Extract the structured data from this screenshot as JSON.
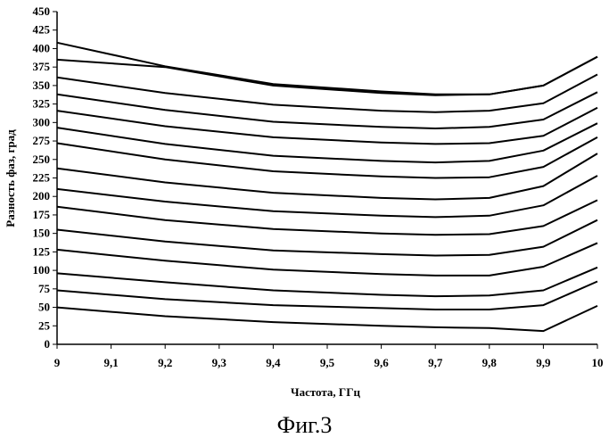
{
  "chart_data": {
    "type": "line",
    "title": "",
    "xlabel": "Частота, ГГц",
    "ylabel": "Разность фаз, град",
    "xlim": [
      9,
      10
    ],
    "ylim": [
      0,
      450
    ],
    "grid": "none",
    "legend": "none",
    "x": [
      9,
      9.2,
      9.4,
      9.6,
      9.7,
      9.8,
      9.9,
      10
    ],
    "x_tick_labels": [
      "9",
      "9,1",
      "9,2",
      "9,3",
      "9,4",
      "9,5",
      "9,6",
      "9,7",
      "9,8",
      "9,9",
      "10"
    ],
    "x_tick_values": [
      9,
      9.1,
      9.2,
      9.3,
      9.4,
      9.5,
      9.6,
      9.7,
      9.8,
      9.9,
      10
    ],
    "y_tick_labels": [
      "0",
      "25",
      "50",
      "75",
      "100",
      "125",
      "150",
      "175",
      "200",
      "225",
      "250",
      "275",
      "300",
      "325",
      "350",
      "375",
      "400",
      "425",
      "450"
    ],
    "y_tick_values": [
      0,
      25,
      50,
      75,
      100,
      125,
      150,
      175,
      200,
      225,
      250,
      275,
      300,
      325,
      350,
      375,
      400,
      425,
      450
    ],
    "series": [
      {
        "values": [
          50,
          38,
          30,
          25,
          23,
          22,
          18,
          52
        ]
      },
      {
        "values": [
          73,
          61,
          53,
          49,
          47,
          47,
          53,
          85
        ]
      },
      {
        "values": [
          96,
          84,
          73,
          67,
          65,
          66,
          73,
          104
        ]
      },
      {
        "values": [
          128,
          113,
          101,
          95,
          93,
          93,
          105,
          137
        ]
      },
      {
        "values": [
          155,
          139,
          127,
          122,
          120,
          121,
          132,
          168
        ]
      },
      {
        "values": [
          186,
          168,
          156,
          150,
          148,
          149,
          160,
          195
        ]
      },
      {
        "values": [
          210,
          193,
          180,
          174,
          172,
          174,
          188,
          228
        ]
      },
      {
        "values": [
          238,
          219,
          205,
          198,
          196,
          198,
          214,
          258
        ]
      },
      {
        "values": [
          272,
          250,
          234,
          227,
          225,
          226,
          240,
          280
        ]
      },
      {
        "values": [
          293,
          271,
          255,
          248,
          246,
          248,
          262,
          299
        ]
      },
      {
        "values": [
          316,
          295,
          280,
          273,
          271,
          272,
          282,
          320
        ]
      },
      {
        "values": [
          338,
          317,
          301,
          294,
          292,
          294,
          304,
          341
        ]
      },
      {
        "values": [
          361,
          340,
          324,
          316,
          314,
          316,
          326,
          365
        ]
      },
      {
        "values": [
          385,
          375,
          350,
          340,
          337,
          338,
          350,
          389
        ]
      },
      {
        "values": [
          408,
          376,
          352,
          342,
          338,
          338,
          350,
          389
        ]
      }
    ],
    "line_color": "#000000"
  },
  "caption": "Фиг.3"
}
